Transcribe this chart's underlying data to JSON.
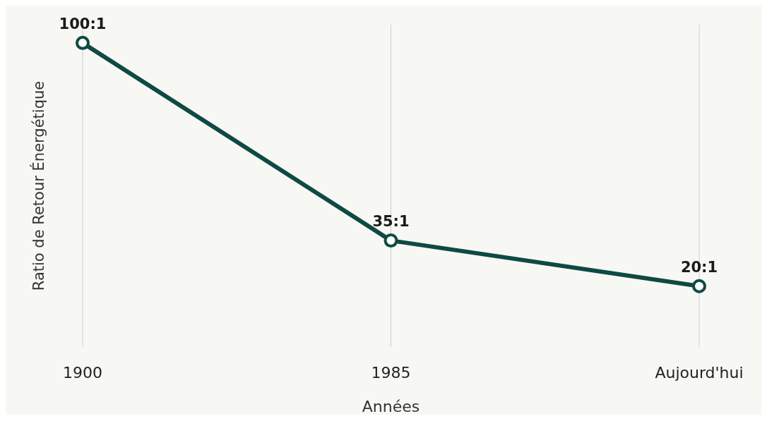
{
  "chart_data": {
    "type": "line",
    "xlabel": "Années",
    "ylabel": "Ratio de Retour Énergétique",
    "categories": [
      "1900",
      "1985",
      "Aujourd'hui"
    ],
    "series": [
      {
        "color": "#0e4a43",
        "values": [
          100,
          35,
          20
        ],
        "value_labels": [
          "100:1",
          "35:1",
          "20:1"
        ]
      }
    ],
    "grid": "x",
    "marker": "circle",
    "line_style": "solid"
  }
}
